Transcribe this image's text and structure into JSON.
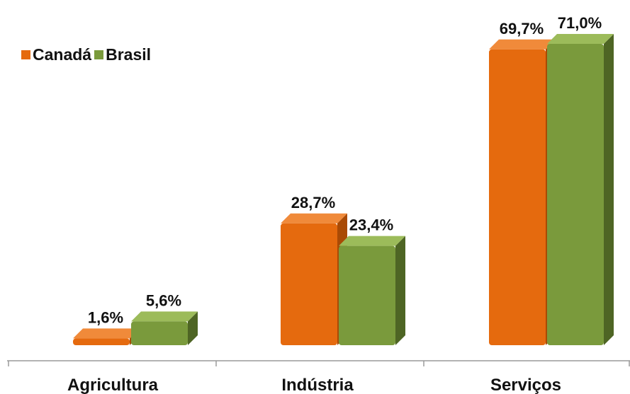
{
  "colors": {
    "canada_front": "#E56A0E",
    "canada_top": "#F08A3A",
    "canada_side": "#A94A05",
    "brasil_front": "#7A9A3C",
    "brasil_top": "#9CBB5A",
    "brasil_side": "#4E6524",
    "axis": "#9a9a9a",
    "text": "#111111"
  },
  "chart_data": {
    "type": "bar",
    "style": "3d-clustered",
    "categories": [
      "Agricultura",
      "Indústria",
      "Serviços"
    ],
    "series": [
      {
        "name": "Canadá",
        "values": [
          1.6,
          28.7,
          69.7
        ],
        "labels": [
          "1,6%",
          "28,7%",
          "69,7%"
        ]
      },
      {
        "name": "Brasil",
        "values": [
          5.6,
          23.4,
          71.0
        ],
        "labels": [
          "5,6%",
          "23,4%",
          "71,0%"
        ]
      }
    ],
    "legend": "top-left",
    "grid": false,
    "title": "",
    "xlabel": "",
    "ylabel": ""
  }
}
